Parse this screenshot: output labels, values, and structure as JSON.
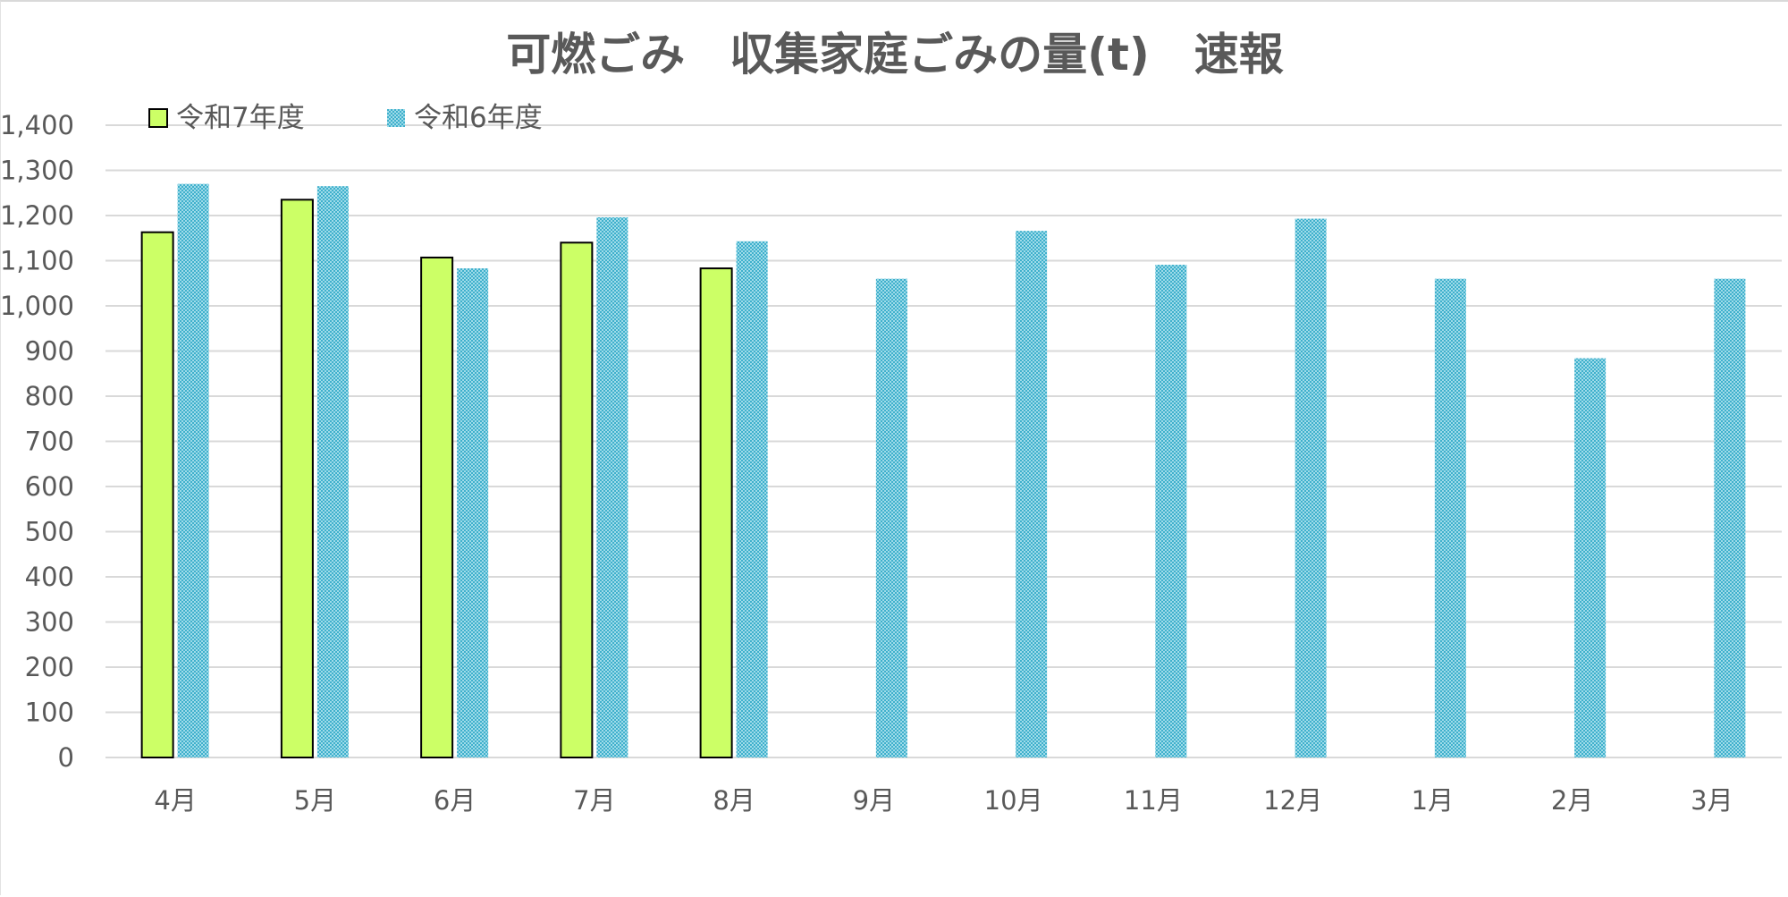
{
  "chart_data": {
    "type": "bar",
    "title": "可燃ごみ　収集家庭ごみの量(t)　速報",
    "categories": [
      "4月",
      "5月",
      "6月",
      "7月",
      "8月",
      "9月",
      "10月",
      "11月",
      "12月",
      "1月",
      "2月",
      "3月"
    ],
    "series": [
      {
        "name": "令和7年度",
        "color": "#ccff66",
        "border": "#000000",
        "pattern": "solid",
        "values": [
          1163,
          1235,
          1107,
          1140,
          1083,
          null,
          null,
          null,
          null,
          null,
          null,
          null
        ]
      },
      {
        "name": "令和6年度",
        "color": "#6ec6da",
        "pattern": "dotted",
        "values": [
          1270,
          1265,
          1083,
          1196,
          1143,
          1060,
          1166,
          1091,
          1193,
          1060,
          884,
          1060
        ]
      }
    ],
    "ylim": [
      0,
      1400
    ],
    "ytick_step": 100,
    "ytick_labels": [
      "0",
      "100",
      "200",
      "300",
      "400",
      "500",
      "600",
      "700",
      "800",
      "900",
      "1,000",
      "1,100",
      "1,200",
      "1,300",
      "1,400"
    ],
    "xlabel": "",
    "ylabel": "",
    "grid": true,
    "legend_position": "top-left",
    "colors": {
      "grid": "#d9d9d9",
      "text": "#595959",
      "axis": "#d9d9d9"
    }
  }
}
